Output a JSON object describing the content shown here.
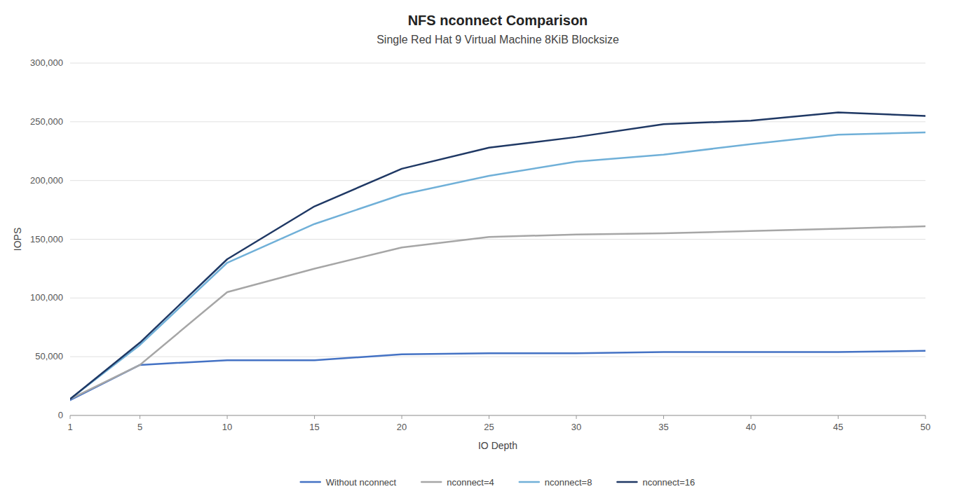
{
  "chart_data": {
    "type": "line",
    "title": "NFS nconnect Comparison",
    "subtitle": "Single Red Hat 9 Virtual Machine 8KiB Blocksize",
    "x_label": "IO Depth",
    "y_label": "IOPS",
    "x": [
      1,
      5,
      10,
      15,
      20,
      25,
      30,
      35,
      40,
      45,
      50
    ],
    "series": [
      {
        "name": "Without nconnect",
        "color": "#4472c4",
        "values": [
          13000,
          43000,
          47000,
          47000,
          52000,
          53000,
          53000,
          54000,
          54000,
          54000,
          55000
        ]
      },
      {
        "name": "nconnect=4",
        "color": "#a6a6a6",
        "values": [
          14000,
          43000,
          105000,
          125000,
          143000,
          152000,
          154000,
          155000,
          157000,
          159000,
          161000
        ]
      },
      {
        "name": "nconnect=8",
        "color": "#70b0d8",
        "values": [
          14000,
          60000,
          130000,
          163000,
          188000,
          204000,
          216000,
          222000,
          231000,
          239000,
          241000
        ]
      },
      {
        "name": "nconnect=16",
        "color": "#1f3864",
        "values": [
          14000,
          62000,
          133000,
          178000,
          210000,
          228000,
          237000,
          248000,
          251000,
          258000,
          255000
        ]
      }
    ],
    "xlim": [
      1,
      50
    ],
    "xticks": [
      1,
      5,
      10,
      15,
      20,
      25,
      30,
      35,
      40,
      45,
      50
    ],
    "ylim": [
      0,
      300000
    ],
    "yticks": [
      0,
      {
        "value": 50000,
        "label": "50,000"
      },
      {
        "value": 100000,
        "label": "100,000"
      },
      {
        "value": 150000,
        "label": "150,000"
      },
      {
        "value": 200000,
        "label": "200,000"
      },
      {
        "value": 250000,
        "label": "250,000"
      },
      {
        "value": 300000,
        "label": "300,000"
      }
    ],
    "grid": true,
    "legend": "bottom"
  }
}
